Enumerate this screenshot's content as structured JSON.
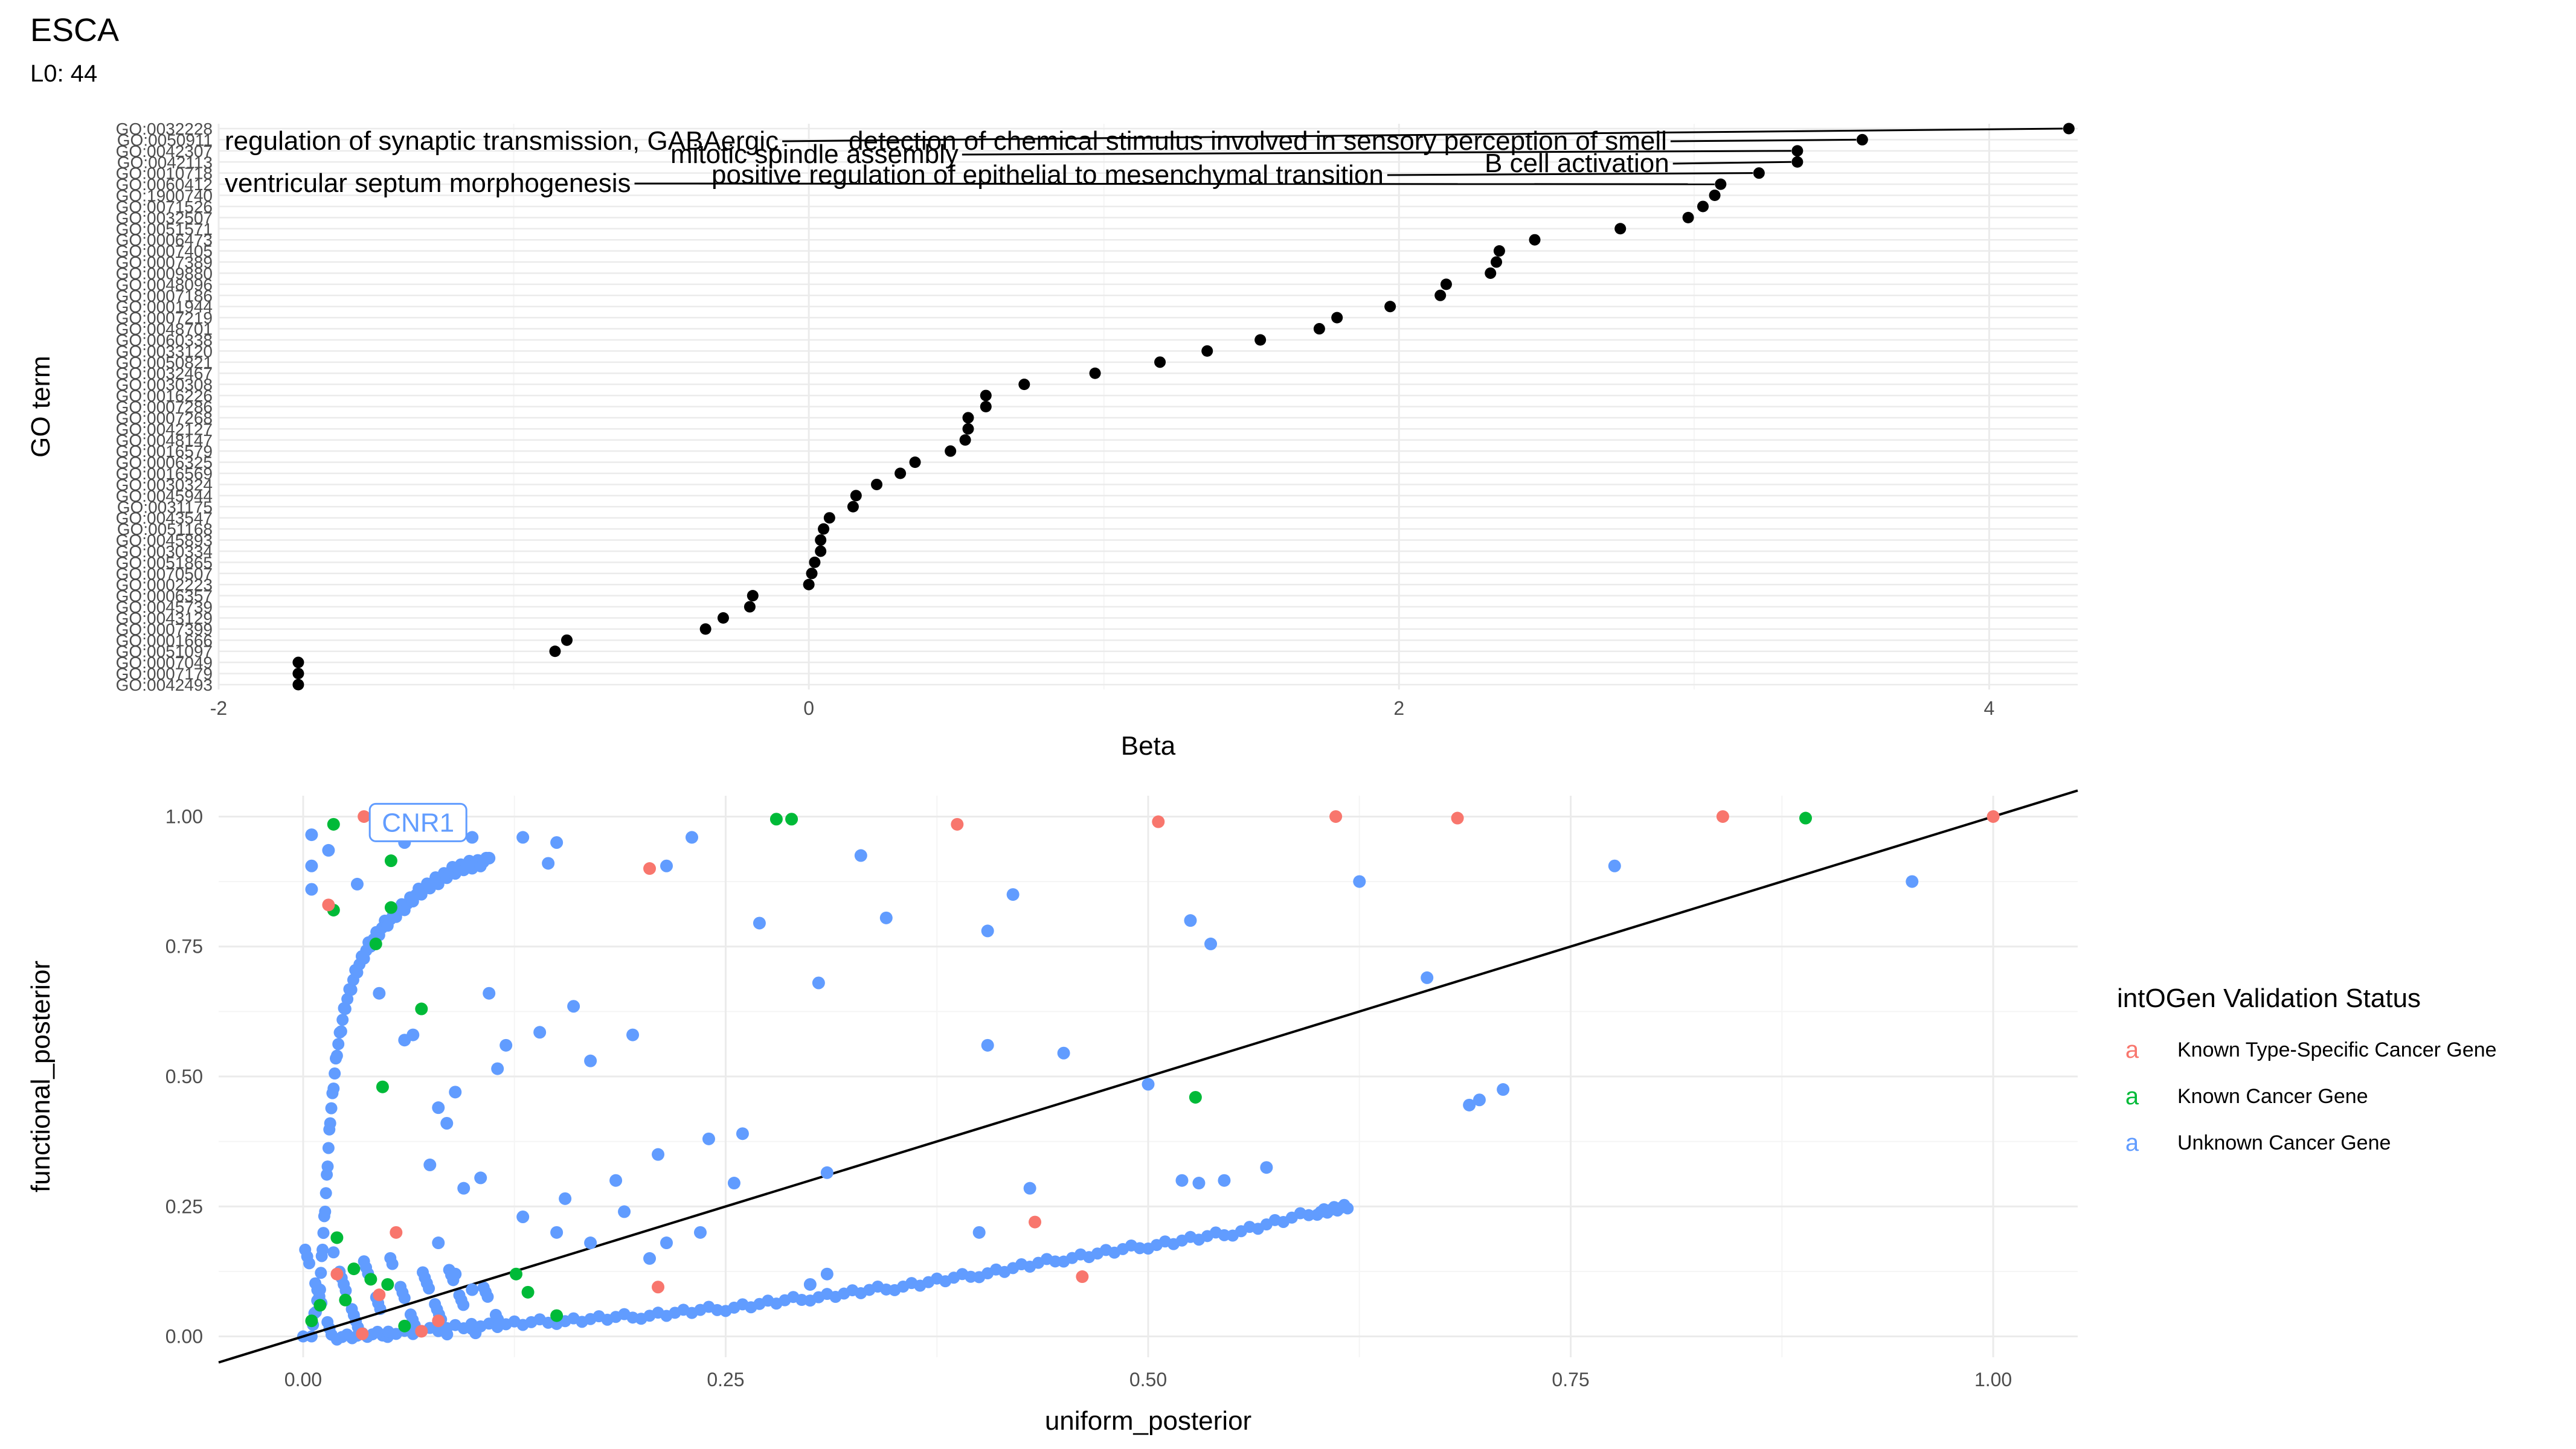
{
  "figure": {
    "title": "ESCA",
    "subtitle": "L0: 44"
  },
  "colors": {
    "known_type_specific": "#F8766D",
    "known_cancer": "#00BA38",
    "unknown": "#619CFF",
    "grid_major": "#EBEBEB",
    "grid_minor": "#F5F5F5",
    "axis_text": "#4D4D4D"
  },
  "chart_data": [
    {
      "type": "scatter",
      "xlabel": "Beta",
      "ylabel": "GO term",
      "xlim": [
        -2,
        4.3
      ],
      "x_ticks": [
        -2,
        0,
        2,
        4
      ],
      "grid": true,
      "terms": [
        "GO:0032228",
        "GO:0050911",
        "GO:0042307",
        "GO:0042113",
        "GO:0010718",
        "GO:0060412",
        "GO:1900740",
        "GO:0071526",
        "GO:0032507",
        "GO:0051571",
        "GO:0006473",
        "GO:0007405",
        "GO:0007389",
        "GO:0009880",
        "GO:0048096",
        "GO:0007186",
        "GO:0001944",
        "GO:0007219",
        "GO:0048701",
        "GO:0060338",
        "GO:0033120",
        "GO:0050821",
        "GO:0032467",
        "GO:0030308",
        "GO:0016226",
        "GO:0007286",
        "GO:0007268",
        "GO:0042127",
        "GO:0048147",
        "GO:0016579",
        "GO:0006325",
        "GO:0016569",
        "GO:0030324",
        "GO:0045944",
        "GO:0031175",
        "GO:0043547",
        "GO:0051168",
        "GO:0045893",
        "GO:0030334",
        "GO:0051865",
        "GO:0070507",
        "GO:0002223",
        "GO:0006357",
        "GO:0045739",
        "GO:0043129",
        "GO:0007399",
        "GO:0001666",
        "GO:0051097",
        "GO:0007049",
        "GO:0007179",
        "GO:0042493"
      ],
      "values": [
        4.27,
        3.57,
        3.35,
        3.35,
        3.22,
        3.09,
        3.07,
        3.03,
        2.98,
        2.75,
        2.46,
        2.34,
        2.33,
        2.31,
        2.16,
        2.14,
        1.97,
        1.79,
        1.73,
        1.53,
        1.35,
        1.19,
        0.97,
        0.73,
        0.6,
        0.6,
        0.54,
        0.54,
        0.53,
        0.48,
        0.36,
        0.31,
        0.23,
        0.16,
        0.15,
        0.07,
        0.05,
        0.04,
        0.04,
        0.02,
        0.01,
        0.0,
        -0.19,
        -0.2,
        -0.29,
        -0.35,
        -0.82,
        -0.86,
        -1.73,
        -1.73,
        -1.73
      ],
      "labels": [
        {
          "term": "GO:0032228",
          "text": "regulation of synaptic transmission, GABAergic",
          "side": "left"
        },
        {
          "term": "GO:0050911",
          "text": "detection of chemical stimulus involved in sensory perception of smell",
          "side": "left"
        },
        {
          "term": "GO:0042307",
          "text": "mitotic spindle assembly",
          "side": "left"
        },
        {
          "term": "GO:0042113",
          "text": "B cell activation",
          "side": "left"
        },
        {
          "term": "GO:0010718",
          "text": "positive regulation of epithelial to mesenchymal transition",
          "side": "left"
        },
        {
          "term": "GO:0060412",
          "text": "ventricular septum morphogenesis",
          "side": "left"
        }
      ]
    },
    {
      "type": "scatter",
      "xlabel": "uniform_posterior",
      "ylabel": "functional_posterior",
      "xlim": [
        -0.05,
        1.05
      ],
      "ylim": [
        -0.04,
        1.04
      ],
      "x_ticks": [
        "0.00",
        "0.25",
        "0.50",
        "0.75",
        "1.00"
      ],
      "y_ticks": [
        "0.00",
        "0.25",
        "0.50",
        "0.75",
        "1.00"
      ],
      "reference_line": "y = x",
      "grid": true,
      "legend": {
        "title": "intOGen Validation Status",
        "glyph": "a",
        "position": "right",
        "entries": [
          {
            "label": "Known Type-Specific Cancer Gene",
            "color_key": "known_type_specific"
          },
          {
            "label": "Known Cancer Gene",
            "color_key": "known_cancer"
          },
          {
            "label": "Unknown Cancer Gene",
            "color_key": "unknown"
          }
        ]
      },
      "annotation": {
        "text": "CNR1",
        "x": 0.068,
        "y": 0.985
      },
      "series": [
        {
          "name": "Known Type-Specific Cancer Gene",
          "color_key": "known_type_specific",
          "points": [
            [
              0.036,
              1.0
            ],
            [
              0.205,
              0.9
            ],
            [
              0.387,
              0.985
            ],
            [
              0.506,
              0.99
            ],
            [
              0.611,
              1.0
            ],
            [
              0.683,
              0.997
            ],
            [
              0.84,
              1.0
            ],
            [
              1.0,
              1.0
            ],
            [
              0.433,
              0.22
            ],
            [
              0.461,
              0.115
            ],
            [
              0.015,
              0.83
            ],
            [
              0.035,
              0.005
            ],
            [
              0.07,
              0.01
            ],
            [
              0.21,
              0.095
            ],
            [
              0.055,
              0.2
            ],
            [
              0.02,
              0.12
            ],
            [
              0.045,
              0.08
            ],
            [
              0.08,
              0.03
            ]
          ]
        },
        {
          "name": "Known Cancer Gene",
          "color_key": "known_cancer",
          "points": [
            [
              0.018,
              0.985
            ],
            [
              0.28,
              0.995
            ],
            [
              0.289,
              0.995
            ],
            [
              0.889,
              0.997
            ],
            [
              0.052,
              0.915
            ],
            [
              0.018,
              0.82
            ],
            [
              0.052,
              0.825
            ],
            [
              0.043,
              0.755
            ],
            [
              0.07,
              0.63
            ],
            [
              0.047,
              0.48
            ],
            [
              0.528,
              0.46
            ],
            [
              0.126,
              0.12
            ],
            [
              0.133,
              0.085
            ],
            [
              0.15,
              0.04
            ],
            [
              0.02,
              0.19
            ],
            [
              0.03,
              0.13
            ],
            [
              0.05,
              0.1
            ],
            [
              0.06,
              0.02
            ],
            [
              0.01,
              0.06
            ],
            [
              0.005,
              0.03
            ],
            [
              0.025,
              0.07
            ],
            [
              0.04,
              0.11
            ]
          ]
        },
        {
          "name": "Unknown Cancer Gene",
          "color_key": "unknown",
          "points": [
            [
              0.005,
              0.965
            ],
            [
              0.015,
              0.935
            ],
            [
              0.005,
              0.905
            ],
            [
              0.005,
              0.86
            ],
            [
              0.032,
              0.87
            ],
            [
              0.06,
              0.95
            ],
            [
              0.1,
              0.96
            ],
            [
              0.11,
              0.92
            ],
            [
              0.13,
              0.96
            ],
            [
              0.15,
              0.95
            ],
            [
              0.145,
              0.91
            ],
            [
              0.215,
              0.905
            ],
            [
              0.23,
              0.96
            ],
            [
              0.27,
              0.795
            ],
            [
              0.33,
              0.925
            ],
            [
              0.345,
              0.805
            ],
            [
              0.42,
              0.85
            ],
            [
              0.525,
              0.8
            ],
            [
              0.537,
              0.755
            ],
            [
              0.625,
              0.875
            ],
            [
              0.665,
              0.69
            ],
            [
              0.776,
              0.905
            ],
            [
              0.952,
              0.875
            ],
            [
              0.69,
              0.445
            ],
            [
              0.696,
              0.455
            ],
            [
              0.71,
              0.475
            ],
            [
              0.53,
              0.295
            ],
            [
              0.545,
              0.3
            ],
            [
              0.57,
              0.325
            ],
            [
              0.43,
              0.285
            ],
            [
              0.255,
              0.295
            ],
            [
              0.31,
              0.315
            ],
            [
              0.405,
              0.56
            ],
            [
              0.45,
              0.545
            ],
            [
              0.5,
              0.485
            ],
            [
              0.52,
              0.3
            ],
            [
              0.405,
              0.78
            ],
            [
              0.305,
              0.68
            ],
            [
              0.16,
              0.635
            ],
            [
              0.14,
              0.585
            ],
            [
              0.115,
              0.515
            ],
            [
              0.09,
              0.47
            ],
            [
              0.08,
              0.44
            ],
            [
              0.105,
              0.305
            ],
            [
              0.095,
              0.285
            ],
            [
              0.075,
              0.33
            ],
            [
              0.085,
              0.41
            ],
            [
              0.06,
              0.57
            ],
            [
              0.045,
              0.66
            ],
            [
              0.065,
              0.58
            ],
            [
              0.195,
              0.58
            ],
            [
              0.24,
              0.38
            ],
            [
              0.26,
              0.39
            ],
            [
              0.13,
              0.23
            ],
            [
              0.15,
              0.2
            ],
            [
              0.155,
              0.265
            ],
            [
              0.19,
              0.24
            ],
            [
              0.205,
              0.15
            ],
            [
              0.215,
              0.18
            ],
            [
              0.235,
              0.2
            ],
            [
              0.4,
              0.2
            ],
            [
              0.185,
              0.3
            ],
            [
              0.21,
              0.35
            ],
            [
              0.17,
              0.53
            ],
            [
              0.12,
              0.56
            ],
            [
              0.11,
              0.66
            ],
            [
              0.3,
              0.1
            ],
            [
              0.31,
              0.12
            ],
            [
              0.08,
              0.18
            ],
            [
              0.09,
              0.12
            ],
            [
              0.1,
              0.09
            ],
            [
              0.17,
              0.18
            ]
          ],
          "curve": [
            [
              0.005,
              0.01
            ],
            [
              0.01,
              0.1
            ],
            [
              0.013,
              0.25
            ],
            [
              0.016,
              0.42
            ],
            [
              0.02,
              0.55
            ],
            [
              0.025,
              0.64
            ],
            [
              0.032,
              0.71
            ],
            [
              0.04,
              0.76
            ],
            [
              0.05,
              0.8
            ],
            [
              0.06,
              0.83
            ],
            [
              0.07,
              0.86
            ],
            [
              0.08,
              0.88
            ],
            [
              0.09,
              0.9
            ],
            [
              0.1,
              0.91
            ],
            [
              0.11,
              0.915
            ]
          ],
          "band": [
            [
              0.02,
              0.0
            ],
            [
              0.05,
              0.005
            ],
            [
              0.1,
              0.02
            ],
            [
              0.15,
              0.03
            ],
            [
              0.2,
              0.04
            ],
            [
              0.25,
              0.055
            ],
            [
              0.3,
              0.075
            ],
            [
              0.35,
              0.095
            ],
            [
              0.4,
              0.12
            ],
            [
              0.45,
              0.15
            ],
            [
              0.5,
              0.175
            ],
            [
              0.55,
              0.2
            ],
            [
              0.6,
              0.24
            ],
            [
              0.62,
              0.25
            ]
          ]
        }
      ]
    }
  ]
}
